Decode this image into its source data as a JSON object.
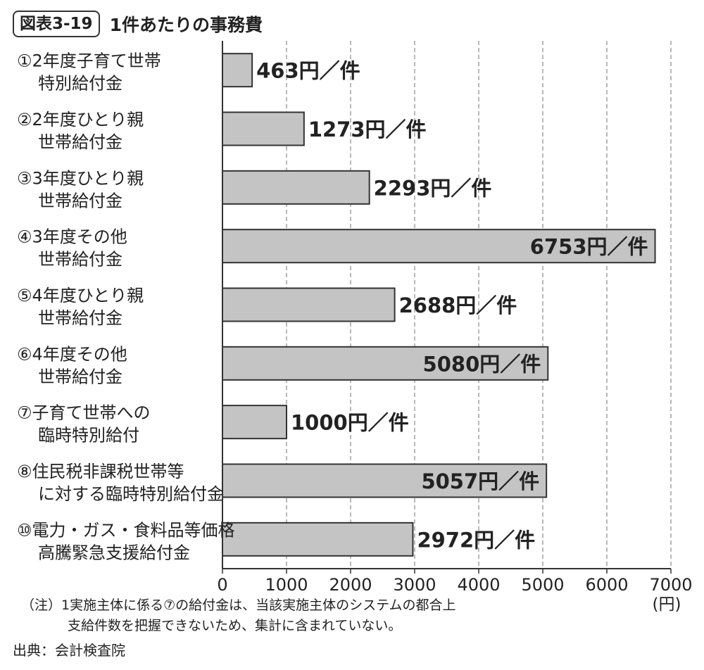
{
  "header": {
    "figure_tag": "図表3-19",
    "title": "1件あたりの事務費"
  },
  "chart_data": {
    "type": "bar",
    "orientation": "horizontal",
    "categories": [
      [
        "①2年度子育て世帯",
        "特別給付金"
      ],
      [
        "②2年度ひとり親",
        "世帯給付金"
      ],
      [
        "③3年度ひとり親",
        "世帯給付金"
      ],
      [
        "④3年度その他",
        "世帯給付金"
      ],
      [
        "⑤4年度ひとり親",
        "世帯給付金"
      ],
      [
        "⑥4年度その他",
        "世帯給付金"
      ],
      [
        "⑦子育て世帯への",
        "臨時特別給付"
      ],
      [
        "⑧住民税非課税世帯等",
        "に対する臨時特別給付金"
      ],
      [
        "⑩電力・ガス・食料品等価格",
        "高騰緊急支援給付金"
      ]
    ],
    "values": [
      463,
      1273,
      2293,
      6753,
      2688,
      5080,
      1000,
      5057,
      2972
    ],
    "value_labels": [
      "463円／件",
      "1273円／件",
      "2293円／件",
      "6753円／件",
      "2688円／件",
      "5080円／件",
      "1000円／件",
      "5057円／件",
      "2972円／件"
    ],
    "xlim": [
      0,
      7000
    ],
    "xticks": [
      "0",
      "1000",
      "2000",
      "3000",
      "4000",
      "5000",
      "6000",
      "7000"
    ],
    "xunit": "(円)",
    "grid": "vertical-dashed",
    "bar_color": "#c4c4c4",
    "edge_color": "#333333"
  },
  "notes": {
    "line1": "（注）1実施主体に係る⑦の給付金は、当該実施主体のシステムの都合上",
    "line2": "支給件数を把握できないため、集計に含まれていない。"
  },
  "source": "出典：会計検査院"
}
